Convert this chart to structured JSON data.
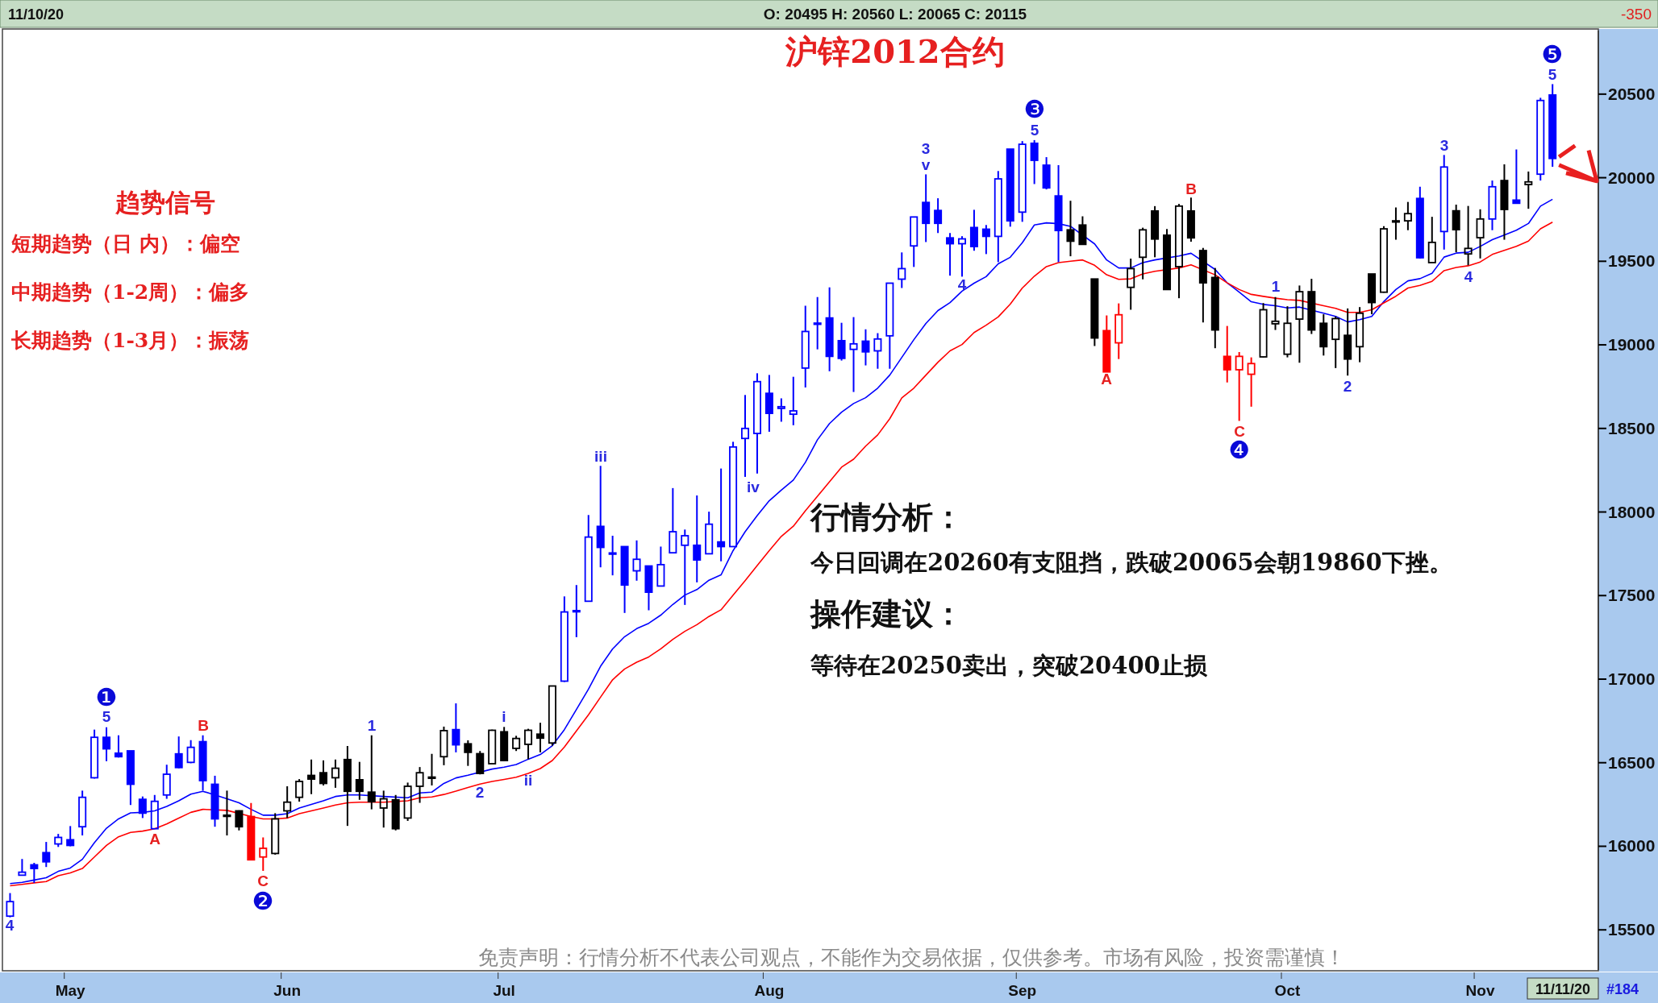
{
  "chart_data": {
    "type": "candlestick",
    "title": "沪锌2012合约",
    "categories": [
      null,
      null,
      null,
      null,
      null,
      "May",
      null,
      null,
      null,
      null,
      null,
      null,
      null,
      null,
      null,
      null,
      null,
      null,
      null,
      null,
      null,
      null,
      null,
      "Jun",
      null,
      null,
      null,
      null,
      null,
      null,
      null,
      null,
      null,
      null,
      null,
      null,
      null,
      null,
      null,
      null,
      null,
      "Jul",
      null,
      null,
      null,
      null,
      null,
      null,
      null,
      null,
      null,
      null,
      null,
      null,
      null,
      null,
      null,
      null,
      null,
      null,
      null,
      null,
      null,
      "Aug",
      null,
      null,
      null,
      null,
      null,
      null,
      null,
      null,
      null,
      null,
      null,
      null,
      null,
      null,
      null,
      null,
      null,
      null,
      null,
      null,
      "Sep",
      null,
      null,
      null,
      null,
      null,
      null,
      null,
      null,
      null,
      null,
      null,
      null,
      null,
      null,
      null,
      null,
      null,
      null,
      null,
      null,
      null,
      "Oct",
      null,
      null,
      null,
      null,
      null,
      null,
      null,
      null,
      null,
      null,
      null,
      null,
      null,
      null,
      null,
      "Nov",
      null,
      null,
      null,
      null,
      null,
      null
    ],
    "ohlc": [
      [
        15582,
        15720,
        15575,
        15669
      ],
      [
        15827,
        15924,
        15824,
        15845
      ],
      [
        15889,
        15901,
        15781,
        15867
      ],
      [
        15962,
        16026,
        15876,
        15907
      ],
      [
        16014,
        16074,
        15996,
        16053
      ],
      [
        16039,
        16121,
        16000,
        16005
      ],
      [
        16117,
        16333,
        16065,
        16293
      ],
      [
        16410,
        16698,
        16405,
        16652
      ],
      [
        16652,
        16712,
        16509,
        16583
      ],
      [
        16557,
        16664,
        16531,
        16536
      ],
      [
        16571,
        16571,
        16247,
        16371
      ],
      [
        16281,
        16298,
        16169,
        16198
      ],
      [
        16105,
        16307,
        16105,
        16269
      ],
      [
        16307,
        16488,
        16284,
        16431
      ],
      [
        16553,
        16657,
        16467,
        16471
      ],
      [
        16502,
        16635,
        16497,
        16592
      ],
      [
        16626,
        16664,
        16333,
        16393
      ],
      [
        16371,
        16422,
        16117,
        16164
      ],
      [
        16186,
        16333,
        16065,
        16181
      ],
      [
        16212,
        16215,
        16095,
        16117
      ],
      [
        16178,
        16259,
        15919,
        15919
      ],
      [
        15936,
        16053,
        15853,
        15988
      ],
      [
        15957,
        16198,
        15950,
        16164
      ],
      [
        16212,
        16359,
        16169,
        16264
      ],
      [
        16293,
        16402,
        16267,
        16388
      ],
      [
        16424,
        16519,
        16312,
        16402
      ],
      [
        16440,
        16514,
        16364,
        16376
      ],
      [
        16410,
        16519,
        16350,
        16467
      ],
      [
        16519,
        16600,
        16122,
        16329
      ],
      [
        16398,
        16505,
        16278,
        16329
      ],
      [
        16324,
        16664,
        16221,
        16267
      ],
      [
        16229,
        16333,
        16112,
        16284
      ],
      [
        16278,
        16307,
        16095,
        16105
      ],
      [
        16169,
        16381,
        16152,
        16359
      ],
      [
        16359,
        16474,
        16260,
        16440
      ],
      [
        16414,
        16553,
        16364,
        16412
      ],
      [
        16536,
        16716,
        16485,
        16692
      ],
      [
        16698,
        16855,
        16562,
        16607
      ],
      [
        16613,
        16634,
        16481,
        16562
      ],
      [
        16554,
        16570,
        16430,
        16436
      ],
      [
        16494,
        16698,
        16494,
        16694
      ],
      [
        16685,
        16714,
        16510,
        16513
      ],
      [
        16586,
        16661,
        16570,
        16645
      ],
      [
        16610,
        16703,
        16521,
        16694
      ],
      [
        16671,
        16739,
        16562,
        16647
      ],
      [
        16618,
        16959,
        16602,
        16959
      ],
      [
        16988,
        17495,
        16983,
        17402
      ],
      [
        17410,
        17563,
        17251,
        17407
      ],
      [
        17466,
        17982,
        17466,
        17850
      ],
      [
        17914,
        18276,
        17669,
        17788
      ],
      [
        17755,
        17858,
        17621,
        17750
      ],
      [
        17793,
        17793,
        17396,
        17563
      ],
      [
        17648,
        17830,
        17589,
        17717
      ],
      [
        17677,
        17677,
        17412,
        17520
      ],
      [
        17557,
        17793,
        17557,
        17685
      ],
      [
        17756,
        18143,
        17753,
        17882
      ],
      [
        17801,
        17895,
        17444,
        17858
      ],
      [
        17801,
        18099,
        17579,
        17713
      ],
      [
        17750,
        18002,
        17750,
        17927
      ],
      [
        17821,
        18260,
        17705,
        17793
      ],
      [
        17793,
        18420,
        17793,
        18389
      ],
      [
        18440,
        18700,
        18210,
        18500
      ],
      [
        18470,
        18830,
        18230,
        18780
      ],
      [
        18710,
        18820,
        18480,
        18590
      ],
      [
        18620,
        18680,
        18540,
        18630
      ],
      [
        18585,
        18809,
        18519,
        18605
      ],
      [
        18861,
        19234,
        18745,
        19080
      ],
      [
        19130,
        19286,
        18973,
        19124
      ],
      [
        19161,
        19344,
        18842,
        18931
      ],
      [
        19025,
        19132,
        18906,
        18919
      ],
      [
        18973,
        19166,
        18718,
        19006
      ],
      [
        19022,
        19093,
        18877,
        18958
      ],
      [
        18964,
        19070,
        18857,
        19035
      ],
      [
        19054,
        19369,
        18857,
        19369
      ],
      [
        19393,
        19553,
        19340,
        19456
      ],
      [
        19592,
        19765,
        19466,
        19765
      ],
      [
        19852,
        20020,
        19615,
        19727
      ],
      [
        19804,
        19877,
        19669,
        19727
      ],
      [
        19640,
        19669,
        19414,
        19605
      ],
      [
        19605,
        19650,
        19408,
        19634
      ],
      [
        19702,
        19808,
        19563,
        19588
      ],
      [
        19692,
        19717,
        19543,
        19649
      ],
      [
        19649,
        20040,
        19495,
        19993
      ],
      [
        20171,
        20171,
        19707,
        19742
      ],
      [
        19794,
        20219,
        19736,
        20200
      ],
      [
        20206,
        20225,
        19962,
        20104
      ],
      [
        20075,
        20123,
        19930,
        19939
      ],
      [
        19891,
        20075,
        19495,
        19684
      ],
      [
        19688,
        19862,
        19530,
        19620
      ],
      [
        19717,
        19769,
        19601,
        19601
      ],
      [
        19394,
        19394,
        18993,
        19041
      ],
      [
        19085,
        19176,
        18838,
        18838
      ],
      [
        19012,
        19248,
        18915,
        19180
      ],
      [
        19344,
        19516,
        19210,
        19456
      ],
      [
        19524,
        19701,
        19392,
        19688
      ],
      [
        19801,
        19830,
        19524,
        19633
      ],
      [
        19656,
        19693,
        19328,
        19331
      ],
      [
        19468,
        19843,
        19279,
        19830
      ],
      [
        19801,
        19881,
        19617,
        19640
      ],
      [
        19564,
        19580,
        19134,
        19371
      ],
      [
        19403,
        19460,
        18980,
        19089
      ],
      [
        18931,
        19113,
        18775,
        18851
      ],
      [
        18851,
        18957,
        18545,
        18931
      ],
      [
        18824,
        18925,
        18630,
        18888
      ],
      [
        18928,
        19250,
        18925,
        19210
      ],
      [
        19126,
        19286,
        19089,
        19141
      ],
      [
        18944,
        19231,
        18925,
        19129
      ],
      [
        19154,
        19355,
        18893,
        19318
      ],
      [
        19318,
        19395,
        19065,
        19089
      ],
      [
        19129,
        19183,
        18936,
        18989
      ],
      [
        19033,
        19170,
        18861,
        19157
      ],
      [
        19057,
        19218,
        18816,
        18915
      ],
      [
        18989,
        19226,
        18896,
        19189
      ],
      [
        19424,
        19424,
        19183,
        19253
      ],
      [
        19315,
        19710,
        19312,
        19694
      ],
      [
        19740,
        19822,
        19629,
        19742
      ],
      [
        19742,
        19855,
        19686,
        19785
      ],
      [
        19876,
        19946,
        19517,
        19521
      ],
      [
        19492,
        19766,
        19492,
        19613
      ],
      [
        19678,
        20136,
        19570,
        20064
      ],
      [
        19802,
        19839,
        19554,
        19689
      ],
      [
        19544,
        19831,
        19476,
        19577
      ],
      [
        19641,
        19811,
        19517,
        19753
      ],
      [
        19753,
        19983,
        19686,
        19946
      ],
      [
        19983,
        20080,
        19629,
        19810
      ],
      [
        19866,
        20169,
        19847,
        19847
      ],
      [
        19959,
        20037,
        19814,
        19975
      ],
      [
        20021,
        20478,
        19983,
        20462
      ],
      [
        20495,
        20560,
        20065,
        20115
      ]
    ],
    "colors": [
      "#0000ff",
      "#0000ff",
      "#0000ff",
      "#0000ff",
      "#0000ff",
      "#0000ff",
      "#0000ff",
      "#0000ff",
      "#0000ff",
      "#0000ff",
      "#0000ff",
      "#0000ff",
      "#0000ff",
      "#0000ff",
      "#0000ff",
      "#0000ff",
      "#0000ff",
      "#0000ff",
      "#000000",
      "#000000",
      "#ff0000",
      "#ff0000",
      "#000000",
      "#000000",
      "#000000",
      "#000000",
      "#000000",
      "#000000",
      "#000000",
      "#000000",
      "#000000",
      "#000000",
      "#000000",
      "#000000",
      "#000000",
      "#000000",
      "#000000",
      "#0000ff",
      "#000000",
      "#000000",
      "#000000",
      "#000000",
      "#000000",
      "#000000",
      "#000000",
      "#000000",
      "#0000ff",
      "#0000ff",
      "#0000ff",
      "#0000ff",
      "#0000ff",
      "#0000ff",
      "#0000ff",
      "#0000ff",
      "#0000ff",
      "#0000ff",
      "#0000ff",
      "#0000ff",
      "#0000ff",
      "#0000ff",
      "#0000ff",
      "#0000ff",
      "#0000ff",
      "#0000ff",
      "#0000ff",
      "#0000ff",
      "#0000ff",
      "#0000ff",
      "#0000ff",
      "#0000ff",
      "#0000ff",
      "#0000ff",
      "#0000ff",
      "#0000ff",
      "#0000ff",
      "#0000ff",
      "#0000ff",
      "#0000ff",
      "#0000ff",
      "#0000ff",
      "#0000ff",
      "#0000ff",
      "#0000ff",
      "#0000ff",
      "#0000ff",
      "#0000ff",
      "#0000ff",
      "#0000ff",
      "#000000",
      "#000000",
      "#000000",
      "#ff0000",
      "#ff0000",
      "#000000",
      "#000000",
      "#000000",
      "#000000",
      "#000000",
      "#000000",
      "#000000",
      "#000000",
      "#ff0000",
      "#ff0000",
      "#ff0000",
      "#000000",
      "#000000",
      "#000000",
      "#000000",
      "#000000",
      "#000000",
      "#000000",
      "#000000",
      "#000000",
      "#000000",
      "#000000",
      "#000000",
      "#000000",
      "#0000ff",
      "#000000",
      "#0000ff",
      "#000000",
      "#000000",
      "#000000",
      "#0000ff",
      "#000000",
      "#0000ff",
      "#000000",
      "#0000ff",
      "#0000ff"
    ],
    "series": [
      {
        "type": "line",
        "color": "#0000ff",
        "values": [
          15777,
          15784,
          15798,
          15812,
          15850,
          15870,
          15922,
          16022,
          16108,
          16164,
          16200,
          16203,
          16212,
          16238,
          16272,
          16312,
          16329,
          16307,
          16284,
          16260,
          16221,
          16186,
          16186,
          16195,
          16229,
          16250,
          16272,
          16298,
          16307,
          16307,
          null,
          16298,
          null,
          16290,
          16319,
          16324,
          16376,
          16409,
          16425,
          null,
          16462,
          16473,
          16489,
          16521,
          16549,
          16602,
          16698,
          16819,
          16940,
          17077,
          17181,
          17254,
          17302,
          17334,
          17383,
          17447,
          17503,
          17536,
          17592,
          17624,
          17769,
          17882,
          17978,
          18067,
          18131,
          18191,
          18297,
          18432,
          18529,
          18597,
          18649,
          18684,
          18741,
          18819,
          18925,
          19031,
          19128,
          19205,
          19253,
          19321,
          19369,
          19408,
          19485,
          19524,
          19611,
          19717,
          19730,
          19725,
          19709,
          null,
          19604,
          19508,
          19460,
          19460,
          19492,
          19508,
          null,
          19532,
          19548,
          null,
          19451,
          19371,
          19315,
          19258,
          19242,
          19234,
          19221,
          19226,
          null,
          19189,
          19170,
          19137,
          19151,
          19170,
          19259,
          19331,
          19383,
          19396,
          19428,
          19525,
          19549,
          19554,
          19589,
          19629,
          19657,
          19686,
          19726,
          19830,
          19871
        ]
      },
      {
        "type": "line",
        "color": "#ff0000",
        "values": [
          15764,
          15772,
          15781,
          15789,
          15824,
          15841,
          15867,
          15936,
          16005,
          16057,
          16083,
          16091,
          16105,
          16134,
          16169,
          16203,
          16221,
          null,
          16215,
          null,
          16178,
          16164,
          16164,
          16169,
          16195,
          16212,
          16229,
          16247,
          16260,
          16264,
          16264,
          16264,
          null,
          16272,
          16290,
          16295,
          16310,
          16330,
          16352,
          16372,
          16388,
          16400,
          16413,
          16436,
          16465,
          16513,
          16594,
          16690,
          16787,
          16892,
          16996,
          17061,
          17101,
          17133,
          17181,
          17238,
          17286,
          17326,
          17375,
          17415,
          17503,
          17589,
          17679,
          17769,
          17854,
          17915,
          18007,
          18094,
          18181,
          18268,
          18316,
          18394,
          18461,
          18558,
          18683,
          18741,
          18819,
          18896,
          18964,
          19002,
          19074,
          19118,
          19167,
          19244,
          19340,
          19411,
          19468,
          19492,
          19500,
          19508,
          19476,
          19419,
          19392,
          19395,
          19424,
          19440,
          null,
          19460,
          19479,
          null,
          19419,
          19371,
          19331,
          19302,
          19290,
          19279,
          19270,
          19266,
          null,
          19234,
          19218,
          19194,
          19194,
          19210,
          19251,
          19291,
          19340,
          19356,
          19380,
          19444,
          19463,
          19473,
          19496,
          19541,
          19565,
          19589,
          19621,
          19694,
          19734
        ]
      }
    ],
    "ylim": [
      15260,
      20880
    ],
    "yticks": [
      15500,
      16000,
      16500,
      17000,
      17500,
      18000,
      18500,
      19000,
      19500,
      20000,
      20500
    ],
    "annotations": [
      "11/10/20",
      "O: 20495  H: 20560  L: 20065  C: 20115",
      "-350",
      "趋势信号",
      "短期趋势（日 内）：偏空",
      "中期趋势（1-2周）：偏多",
      "长期趋势（1-3月）：振荡",
      "行情分析：",
      "今日回调在20260有支阻挡，跌破20065会朝19860下挫。",
      "操作建议：",
      "等待在20250卖出，突破20400止损",
      "免责声明：行情分析不代表公司观点，不能作为交易依据，仅供参考。市场有风险，投资需谨慎！",
      "11/11/20",
      "#184",
      "4",
      "❶",
      "5",
      "A",
      "B",
      "C",
      "❷",
      "1",
      "2",
      "i",
      "ii",
      "iii",
      "iv",
      "3",
      "v",
      "4",
      "❸",
      "5",
      "A",
      "B",
      "C",
      "❹",
      "1",
      "2",
      "3",
      "4",
      "❺",
      "5"
    ]
  }
}
